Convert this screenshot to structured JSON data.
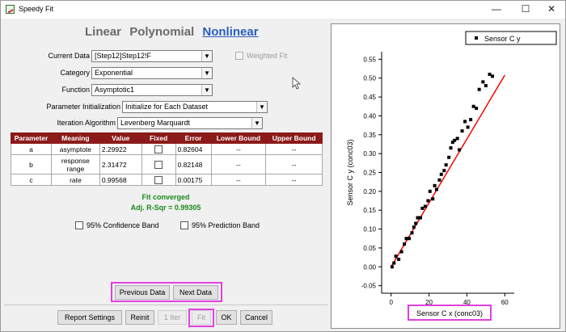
{
  "window": {
    "title": "Speedy Fit",
    "minimize": "—",
    "maximize": "☐",
    "close": "✕"
  },
  "tabs": [
    "Linear",
    "Polynomial",
    "Nonlinear"
  ],
  "form": {
    "current_data_label": "Current Data",
    "current_data_value": "[Step12]Step12!F",
    "weighted_fit_label": "Weighted Fit",
    "category_label": "Category",
    "category_value": "Exponential",
    "function_label": "Function",
    "function_value": "Asymptotic1",
    "param_init_label": "Parameter Initialization",
    "param_init_value": "Initialize for Each Dataset",
    "iter_label": "Iteration Algorithm",
    "iter_value": "Levenberg Marquardt"
  },
  "table": {
    "headers": [
      "Parameter",
      "Meaning",
      "Value",
      "Fixed",
      "Error",
      "Lower Bound",
      "Upper Bound"
    ],
    "rows": [
      {
        "param": "a",
        "meaning": "asymptote",
        "value": "2.29922",
        "error": "0.82604",
        "lower": "--",
        "upper": "--"
      },
      {
        "param": "b",
        "meaning": "response range",
        "value": "2.31472",
        "error": "0.82148",
        "lower": "--",
        "upper": "--"
      },
      {
        "param": "c",
        "meaning": "rate",
        "value": "0.99568",
        "error": "0.00175",
        "lower": "--",
        "upper": "--"
      }
    ]
  },
  "status": {
    "converged": "Fit converged",
    "adj_r": "Adj. R-Sqr = 0.99305"
  },
  "options": {
    "confidence": "95% Confidence Band",
    "prediction": "95% Prediction Band"
  },
  "nav": {
    "previous": "Previous Data",
    "next": "Next Data"
  },
  "footer": {
    "report": "Report Settings",
    "reinit": "Reinit",
    "iter": "1 Iter",
    "fit": "Fit",
    "ok": "OK",
    "cancel": "Cancel"
  },
  "chart_data": {
    "type": "scatter",
    "legend": "Sensor C y",
    "legend_position": "top-right",
    "xlabel": "Sensor C x (conc03)",
    "ylabel": "Sensor C y (conc03)",
    "xlim": [
      -5,
      65
    ],
    "ylim": [
      -0.07,
      0.57
    ],
    "xticks": [
      0,
      20,
      40,
      60
    ],
    "yticks": [
      -0.05,
      0.0,
      0.05,
      0.1,
      0.15,
      0.2,
      0.25,
      0.3,
      0.35,
      0.4,
      0.45,
      0.5,
      0.55
    ],
    "grid": false,
    "fit_line": {
      "color": "#ff0000",
      "x": [
        0,
        60
      ],
      "y": [
        0.0,
        0.508
      ]
    },
    "points": [
      [
        0.5,
        0.0
      ],
      [
        1.5,
        0.01
      ],
      [
        2.5,
        0.028
      ],
      [
        4,
        0.02
      ],
      [
        5.5,
        0.04
      ],
      [
        7,
        0.06
      ],
      [
        8,
        0.075
      ],
      [
        9.5,
        0.075
      ],
      [
        11,
        0.09
      ],
      [
        12,
        0.105
      ],
      [
        13,
        0.115
      ],
      [
        14,
        0.13
      ],
      [
        15.5,
        0.13
      ],
      [
        16.5,
        0.155
      ],
      [
        18,
        0.16
      ],
      [
        19.5,
        0.175
      ],
      [
        20.5,
        0.2
      ],
      [
        22,
        0.18
      ],
      [
        23,
        0.215
      ],
      [
        24,
        0.205
      ],
      [
        25.5,
        0.23
      ],
      [
        26.5,
        0.245
      ],
      [
        28,
        0.255
      ],
      [
        29,
        0.27
      ],
      [
        30.5,
        0.29
      ],
      [
        31.5,
        0.315
      ],
      [
        32.5,
        0.33
      ],
      [
        33.5,
        0.335
      ],
      [
        35,
        0.34
      ],
      [
        36,
        0.31
      ],
      [
        37.5,
        0.36
      ],
      [
        39,
        0.385
      ],
      [
        40.5,
        0.37
      ],
      [
        42,
        0.39
      ],
      [
        43.5,
        0.425
      ],
      [
        45,
        0.42
      ],
      [
        46.5,
        0.47
      ],
      [
        48.5,
        0.49
      ],
      [
        50,
        0.48
      ],
      [
        52,
        0.51
      ],
      [
        53.5,
        0.505
      ]
    ]
  }
}
